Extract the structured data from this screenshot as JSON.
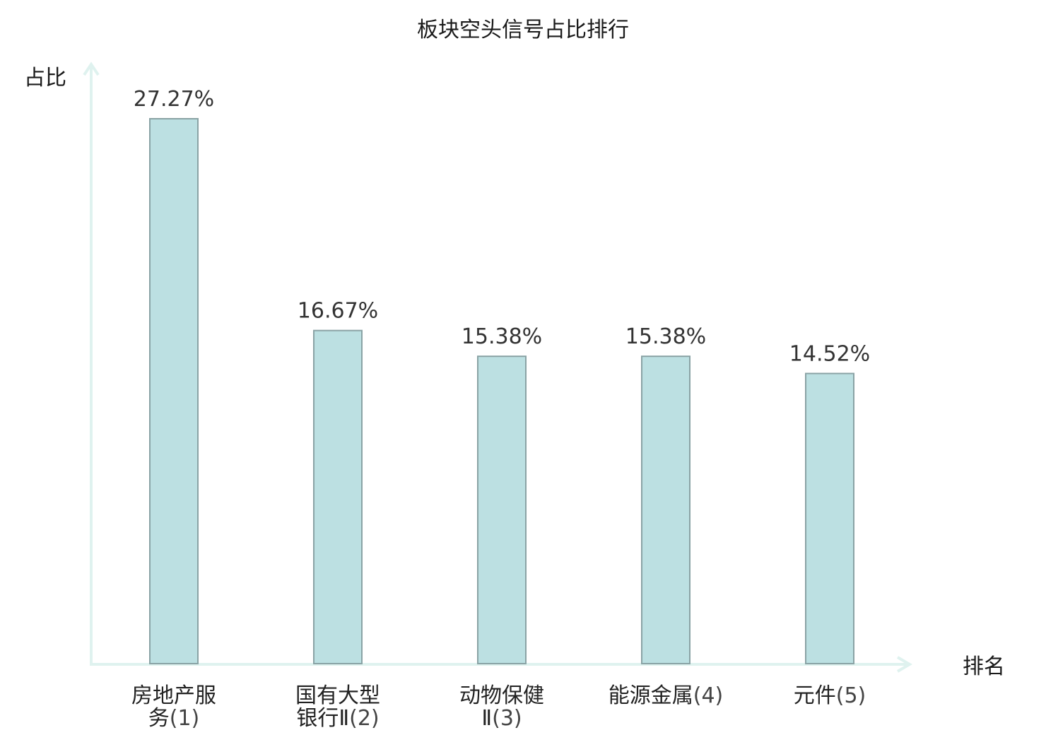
{
  "chart_data": {
    "type": "bar",
    "title": "板块空头信号占比排行",
    "ylabel": "占比",
    "xlabel": "排名",
    "ylim": [
      0,
      30
    ],
    "grid": false,
    "legend": "none",
    "colors": {
      "bar_fill": "#bce0e2",
      "bar_stroke": "#8aa3a5",
      "axis": "#dff2ef",
      "highlight_text": "#dd0000"
    },
    "categories": [
      {
        "name": "房地产服务",
        "rank": "(1)",
        "display_lines": [
          [
            "房地产服",
            ""
          ],
          [
            "务",
            "(1)"
          ]
        ],
        "highlight": false
      },
      {
        "name": "国有大型银行Ⅱ",
        "rank": "(2)",
        "display_lines": [
          [
            "国有大型",
            ""
          ],
          [
            "银行Ⅱ",
            "(2)"
          ]
        ],
        "highlight": false
      },
      {
        "name": "动物保健Ⅱ",
        "rank": "(3)",
        "display_lines": [
          [
            "动物保健",
            ""
          ],
          [
            "Ⅱ",
            "(3)"
          ]
        ],
        "highlight": false
      },
      {
        "name": "能源金属",
        "rank": "(4)",
        "display_lines": [
          [
            "能源金属",
            "(4)"
          ]
        ],
        "highlight": false
      },
      {
        "name": "元件",
        "rank": "(5)",
        "display_lines": [
          [
            "元件",
            "(5)"
          ]
        ],
        "highlight": true
      }
    ],
    "values": [
      27.27,
      16.67,
      15.38,
      15.38,
      14.52
    ],
    "value_labels": [
      "27.27%",
      "16.67%",
      "15.38%",
      "15.38%",
      "14.52%"
    ]
  }
}
